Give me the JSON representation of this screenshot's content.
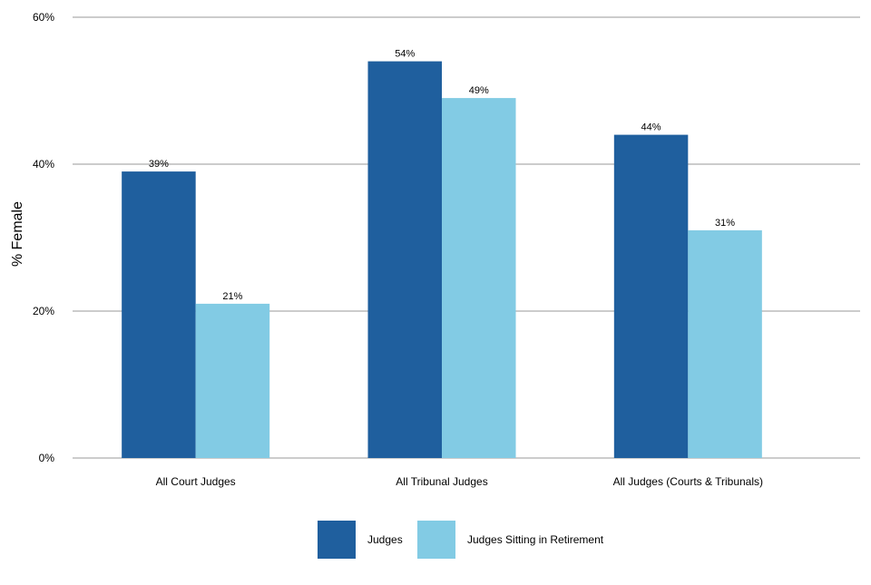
{
  "chart_data": {
    "type": "bar",
    "categories": [
      "All Court Judges",
      "All Tribunal Judges",
      "All Judges (Courts & Tribunals)"
    ],
    "series": [
      {
        "name": "Judges",
        "values": [
          39,
          54,
          44
        ],
        "labels": [
          "39%",
          "54%",
          "44%"
        ],
        "color": "#1f5f9e"
      },
      {
        "name": "Judges Sitting in Retirement",
        "values": [
          21,
          49,
          31
        ],
        "labels": [
          "21%",
          "49%",
          "31%"
        ],
        "color": "#82cbe4"
      }
    ],
    "ylabel": "% Female",
    "xlabel": "",
    "ylim": [
      0,
      60
    ],
    "yticks": [
      0,
      20,
      40,
      60
    ],
    "ytick_labels": [
      "0%",
      "20%",
      "40%",
      "60%"
    ],
    "grid": true,
    "gridline_color": "#cccccc",
    "legend_position": "bottom"
  }
}
